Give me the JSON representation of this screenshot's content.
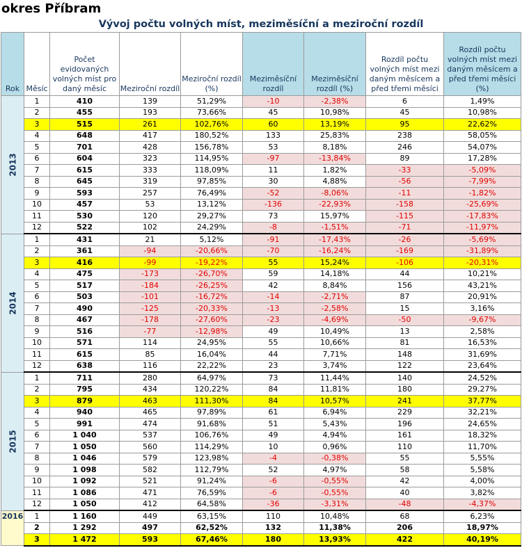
{
  "title": "okres Příbram",
  "subtitle": "Vývoj počtu volných míst, meziměsíční a meziroční rozdíl",
  "headers": [
    "Rok",
    "Měsíc",
    "Počet evidovaných volných míst pro daný měsíc",
    "Meziroční rozdíl",
    "Meziroční rozdíl (%)",
    "Meziměsíční rozdíl",
    "Meziměsíční rozdíl (%)",
    "Rozdíl počtu volných míst mezi daným měsícem a před třemi měsíci",
    "Rozdíl počtu volných míst mezi daným měsícem a před třemi měsíci (%)"
  ],
  "colors": {
    "highlight": "#ffff00",
    "negative_bg": "#f2dcdb",
    "negative_text": "#e00000",
    "header_blue": "#b7dde8"
  },
  "years": [
    {
      "year": "2013",
      "rows": [
        [
          "1",
          "410",
          "139",
          "51,29%",
          "-10",
          "-2,38%",
          "6",
          "1,49%"
        ],
        [
          "2",
          "455",
          "193",
          "73,66%",
          "45",
          "10,98%",
          "45",
          "10,98%"
        ],
        [
          "3",
          "515",
          "261",
          "102,76%",
          "60",
          "13,19%",
          "95",
          "22,62%"
        ],
        [
          "4",
          "648",
          "417",
          "180,52%",
          "133",
          "25,83%",
          "238",
          "58,05%"
        ],
        [
          "5",
          "701",
          "428",
          "156,78%",
          "53",
          "8,18%",
          "246",
          "54,07%"
        ],
        [
          "6",
          "604",
          "323",
          "114,95%",
          "-97",
          "-13,84%",
          "89",
          "17,28%"
        ],
        [
          "7",
          "615",
          "333",
          "118,09%",
          "11",
          "1,82%",
          "-33",
          "-5,09%"
        ],
        [
          "8",
          "645",
          "319",
          "97,85%",
          "30",
          "4,88%",
          "-56",
          "-7,99%"
        ],
        [
          "9",
          "593",
          "257",
          "76,49%",
          "-52",
          "-8,06%",
          "-11",
          "-1,82%"
        ],
        [
          "10",
          "457",
          "53",
          "13,12%",
          "-136",
          "-22,93%",
          "-158",
          "-25,69%"
        ],
        [
          "11",
          "530",
          "120",
          "29,27%",
          "73",
          "15,97%",
          "-115",
          "-17,83%"
        ],
        [
          "12",
          "522",
          "102",
          "24,29%",
          "-8",
          "-1,51%",
          "-71",
          "-11,97%"
        ]
      ]
    },
    {
      "year": "2014",
      "rows": [
        [
          "1",
          "431",
          "21",
          "5,12%",
          "-91",
          "-17,43%",
          "-26",
          "-5,69%"
        ],
        [
          "2",
          "361",
          "-94",
          "-20,66%",
          "-70",
          "-16,24%",
          "-169",
          "-31,89%"
        ],
        [
          "3",
          "416",
          "-99",
          "-19,22%",
          "55",
          "15,24%",
          "-106",
          "-20,31%"
        ],
        [
          "4",
          "475",
          "-173",
          "-26,70%",
          "59",
          "14,18%",
          "44",
          "10,21%"
        ],
        [
          "5",
          "517",
          "-184",
          "-26,25%",
          "42",
          "8,84%",
          "156",
          "43,21%"
        ],
        [
          "6",
          "503",
          "-101",
          "-16,72%",
          "-14",
          "-2,71%",
          "87",
          "20,91%"
        ],
        [
          "7",
          "490",
          "-125",
          "-20,33%",
          "-13",
          "-2,58%",
          "15",
          "3,16%"
        ],
        [
          "8",
          "467",
          "-178",
          "-27,60%",
          "-23",
          "-4,69%",
          "-50",
          "-9,67%"
        ],
        [
          "9",
          "516",
          "-77",
          "-12,98%",
          "49",
          "10,49%",
          "13",
          "2,58%"
        ],
        [
          "10",
          "571",
          "114",
          "24,95%",
          "55",
          "10,66%",
          "81",
          "16,53%"
        ],
        [
          "11",
          "615",
          "85",
          "16,04%",
          "44",
          "7,71%",
          "148",
          "31,69%"
        ],
        [
          "12",
          "638",
          "116",
          "22,22%",
          "23",
          "3,74%",
          "122",
          "23,64%"
        ]
      ]
    },
    {
      "year": "2015",
      "rows": [
        [
          "1",
          "711",
          "280",
          "64,97%",
          "73",
          "11,44%",
          "140",
          "24,52%"
        ],
        [
          "2",
          "795",
          "434",
          "120,22%",
          "84",
          "11,81%",
          "180",
          "29,27%"
        ],
        [
          "3",
          "879",
          "463",
          "111,30%",
          "84",
          "10,57%",
          "241",
          "37,77%"
        ],
        [
          "4",
          "940",
          "465",
          "97,89%",
          "61",
          "6,94%",
          "229",
          "32,21%"
        ],
        [
          "5",
          "991",
          "474",
          "91,68%",
          "51",
          "5,43%",
          "196",
          "24,65%"
        ],
        [
          "6",
          "1 040",
          "537",
          "106,76%",
          "49",
          "4,94%",
          "161",
          "18,32%"
        ],
        [
          "7",
          "1 050",
          "560",
          "114,29%",
          "10",
          "0,96%",
          "110",
          "11,70%"
        ],
        [
          "8",
          "1 046",
          "579",
          "123,98%",
          "-4",
          "-0,38%",
          "55",
          "5,55%"
        ],
        [
          "9",
          "1 098",
          "582",
          "112,79%",
          "52",
          "4,97%",
          "58",
          "5,58%"
        ],
        [
          "10",
          "1 092",
          "521",
          "91,24%",
          "-6",
          "-0,55%",
          "42",
          "4,00%"
        ],
        [
          "11",
          "1 086",
          "471",
          "76,59%",
          "-6",
          "-0,55%",
          "40",
          "3,82%"
        ],
        [
          "12",
          "1 050",
          "412",
          "64,58%",
          "-36",
          "-3,31%",
          "-48",
          "-4,37%"
        ]
      ]
    },
    {
      "year": "2016",
      "rows": [
        [
          "1",
          "1 160",
          "449",
          "63,15%",
          "110",
          "10,48%",
          "68",
          "6,23%"
        ],
        [
          "2",
          "1 292",
          "497",
          "62,52%",
          "132",
          "11,38%",
          "206",
          "18,97%"
        ],
        [
          "3",
          "1 472",
          "593",
          "67,46%",
          "180",
          "13,93%",
          "422",
          "40,19%"
        ]
      ]
    }
  ]
}
